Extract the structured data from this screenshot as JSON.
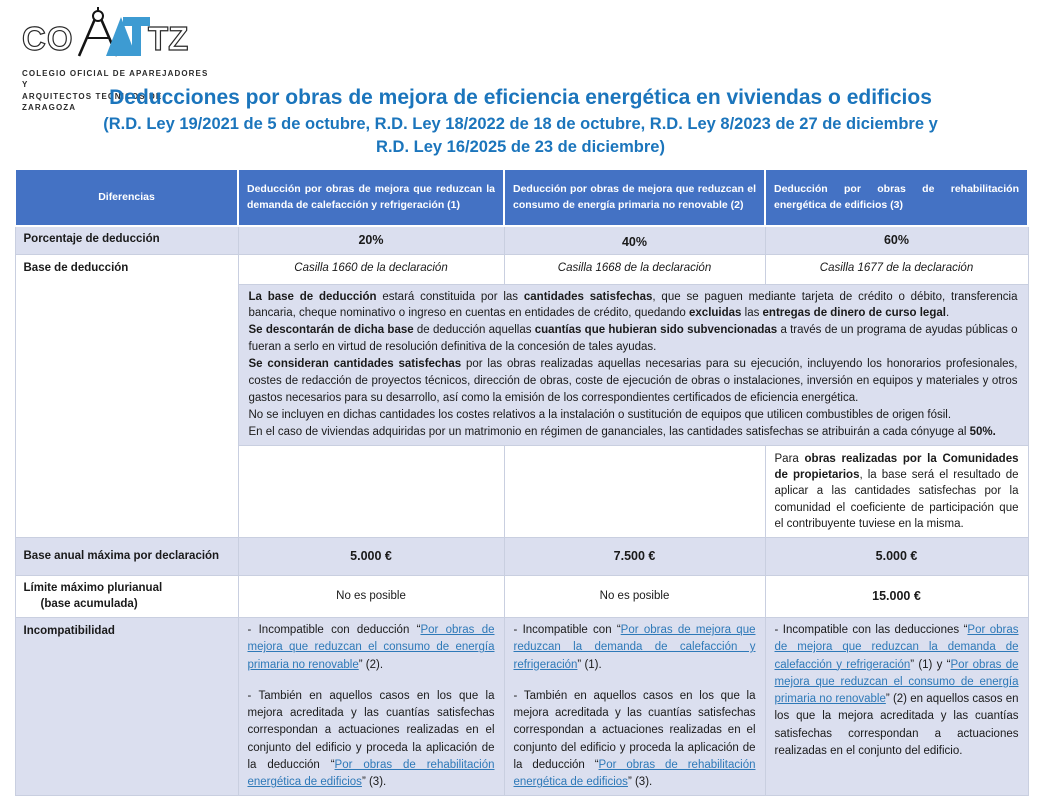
{
  "logo": {
    "caption_line1": "COLEGIO OFICIAL DE APAREJADORES Y",
    "caption_line2": "ARQUITECTOS TECNICOS DE ZARAGOZA"
  },
  "title": "Deducciones por obras de mejora de eficiencia energética en viviendas o edificios",
  "subtitle_line1": "(R.D. Ley 19/2021 de 5 de octubre, R.D. Ley 18/2022 de 18 de octubre, R.D. Ley 8/2023 de 27 de diciembre y",
  "subtitle_line2": "R.D. Ley 16/2025 de 23 de diciembre)",
  "colors": {
    "header_bg": "#4472C4",
    "band_bg": "#DBDFEF",
    "title_blue": "#1B75BC",
    "link_blue": "#2E79B8",
    "logo_blue": "#3D9BD2"
  },
  "table": {
    "headers": [
      "Diferencias",
      "Deducción por obras de mejora que reduzcan la demanda de calefacción y refrigeración (1)",
      "Deducción por obras de mejora que reduzcan el consumo de energía primaria no renovable (2)",
      "Deducción por obras de rehabilitación energética de edificios (3)"
    ],
    "rows": {
      "porcentaje": {
        "label": "Porcentaje de deducción",
        "values": [
          "20%",
          "40%",
          "60%"
        ]
      },
      "base": {
        "label": "Base de deducción",
        "values": [
          "Casilla 1660 de la declaración",
          "Casilla 1668 de la declaración",
          "Casilla 1677 de la declaración"
        ]
      },
      "base_info_rich": [
        [
          {
            "t": "La base de deducción",
            "b": true
          },
          {
            "t": " estará constituida por las "
          },
          {
            "t": "cantidades satisfechas",
            "b": true
          },
          {
            "t": ", que se paguen mediante tarjeta de crédito o débito, transferencia bancaria, cheque nominativo o ingreso en cuentas en entidades de crédito, quedando "
          },
          {
            "t": "excluidas",
            "b": true
          },
          {
            "t": " las "
          },
          {
            "t": "entregas de dinero de curso legal",
            "b": true
          },
          {
            "t": "."
          }
        ],
        [
          {
            "t": "Se descontarán de dicha base",
            "b": true
          },
          {
            "t": " de deducción aquellas "
          },
          {
            "t": "cuantías que hubieran sido subvencionadas",
            "b": true
          },
          {
            "t": " a través de un programa de ayudas públicas o fueran a serlo en virtud de resolución definitiva de la concesión de tales ayudas."
          }
        ],
        [
          {
            "t": "Se consideran cantidades satisfechas",
            "b": true
          },
          {
            "t": " por las obras realizadas aquellas necesarias para su ejecución, incluyendo los honorarios profesionales, costes de redacción de proyectos técnicos, dirección de obras, coste de ejecución de obras o instalaciones, inversión en equipos y materiales y otros gastos necesarios para su desarrollo, así como la emisión de los correspondientes certificados de eficiencia energética."
          }
        ],
        [
          {
            "t": "No se incluyen en dichas cantidades los costes relativos a la instalación o sustitución de equipos que utilicen combustibles de origen fósil."
          }
        ],
        [
          {
            "t": "En el caso de viviendas adquiridas por un matrimonio en régimen de gananciales, las cantidades satisfechas se atribuirán a cada cónyuge al "
          },
          {
            "t": "50%.",
            "b": true
          }
        ]
      ],
      "comunidades_rich": [
        [
          {
            "t": "Para "
          },
          {
            "t": "obras realizadas por la Comunidades de propietarios",
            "b": true
          },
          {
            "t": ", la base será el resultado de aplicar a las cantidades satisfechas por la comunidad el coeficiente de participación que el contribuyente tuviese en la misma."
          }
        ]
      ],
      "base_anual": {
        "label": "Base anual máxima por declaración",
        "values": [
          "5.000 €",
          "7.500 €",
          "5.000 €"
        ]
      },
      "limite": {
        "label1": "Límite máximo plurianual",
        "label2": "(base acumulada)",
        "values": [
          "No es posible",
          "No es posible",
          "15.000 €"
        ]
      },
      "incompatibilidad": {
        "label": "Incompatibilidad",
        "cell1_rich": [
          [
            {
              "t": "- Incompatible con deducción “"
            },
            {
              "t": "Por obras de mejora que reduzcan el consumo de energía primaria no renovable",
              "l": true
            },
            {
              "t": "” (2)."
            }
          ],
          [
            {
              "t": "- También en aquellos casos en los que la mejora acreditada y las cuantías satisfechas correspondan a actuaciones realizadas en el conjunto del edificio y proceda la aplicación de la deducción “"
            },
            {
              "t": "Por obras de rehabilitación energética de edificios",
              "l": true
            },
            {
              "t": "” (3)."
            }
          ]
        ],
        "cell2_rich": [
          [
            {
              "t": "- Incompatible con “"
            },
            {
              "t": "Por obras de mejora que reduzcan la demanda de calefacción y refrigeración",
              "l": true
            },
            {
              "t": "” (1)."
            }
          ],
          [
            {
              "t": "- También en aquellos casos en los que la mejora acreditada y las cuantías satisfechas correspondan a actuaciones realizadas en el conjunto del edificio y proceda la aplicación de la deducción “"
            },
            {
              "t": "Por obras de rehabilitación energética de edificios",
              "l": true
            },
            {
              "t": "” (3)."
            }
          ]
        ],
        "cell3_rich": [
          [
            {
              "t": "- Incompatible con las deducciones “"
            },
            {
              "t": "Por obras de mejora que reduzcan la demanda de calefacción y refrigeración",
              "l": true
            },
            {
              "t": "” (1) y “"
            },
            {
              "t": "Por obras de mejora que reduzcan el consumo de energía primaria no renovable",
              "l": true
            },
            {
              "t": "” (2) en aquellos casos en los que la mejora acreditada y las cuantías satisfechas correspondan a actuaciones realizadas en el conjunto del edificio."
            }
          ]
        ]
      }
    }
  }
}
